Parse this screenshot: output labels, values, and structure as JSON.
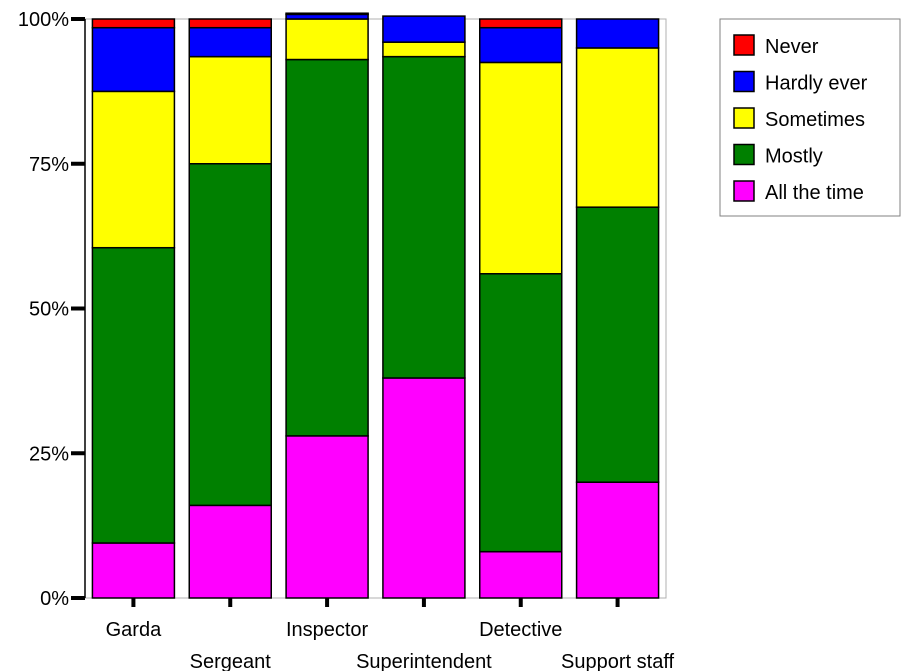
{
  "chart_data": {
    "type": "bar",
    "stacked": true,
    "categories": [
      "Garda",
      "Sergeant",
      "Inspector",
      "Superintendent",
      "Detective",
      "Support staff"
    ],
    "series": [
      {
        "name": "All the time",
        "color": "#ff00ff",
        "values": [
          9.5,
          16.0,
          28.0,
          38.0,
          8.0,
          20.0
        ]
      },
      {
        "name": "Mostly",
        "color": "#008000",
        "values": [
          51.0,
          59.0,
          65.0,
          55.5,
          48.0,
          47.5
        ]
      },
      {
        "name": "Sometimes",
        "color": "#ffff00",
        "values": [
          27.0,
          18.5,
          7.0,
          2.5,
          36.5,
          27.5
        ]
      },
      {
        "name": "Hardly ever",
        "color": "#0000ff",
        "values": [
          11.0,
          5.0,
          0.8,
          4.5,
          6.0,
          5.0
        ]
      },
      {
        "name": "Never",
        "color": "#ff0000",
        "values": [
          1.5,
          1.5,
          0.2,
          0.0,
          1.5,
          0.0
        ]
      }
    ],
    "y_ticks": [
      "0%",
      "25%",
      "50%",
      "75%",
      "100%"
    ],
    "ylim": [
      0,
      100
    ],
    "legend_position": "top-right",
    "legend_order": [
      "Never",
      "Hardly ever",
      "Sometimes",
      "Mostly",
      "All the time"
    ],
    "grid": false
  }
}
